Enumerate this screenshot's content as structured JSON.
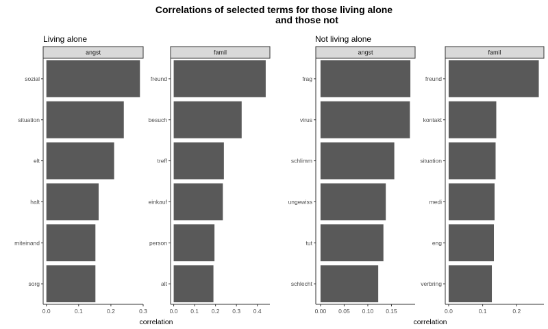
{
  "title_lines": [
    "Correlations of selected terms for those living alone",
    "and those not"
  ],
  "chart_data": [
    {
      "type": "bar",
      "orientation": "horizontal",
      "group": "Living alone",
      "xlabel": "correlation",
      "panels": [
        {
          "strip": "angst",
          "categories": [
            "sozial",
            "situation",
            "elt",
            "halt",
            "miteinand",
            "sorg"
          ],
          "values": [
            0.29,
            0.24,
            0.21,
            0.162,
            0.152,
            0.152
          ],
          "xlim": [
            -0.01,
            0.3
          ],
          "xticks": [
            0.0,
            0.1,
            0.2,
            0.3
          ],
          "xtick_labels": [
            "0.0",
            "0.1",
            "0.2",
            "0.3"
          ]
        },
        {
          "strip": "famil",
          "categories": [
            "freund",
            "besuch",
            "treff",
            "einkauf",
            "person",
            "alt"
          ],
          "values": [
            0.44,
            0.325,
            0.24,
            0.235,
            0.195,
            0.19
          ],
          "xlim": [
            -0.015,
            0.46
          ],
          "xticks": [
            0.0,
            0.1,
            0.2,
            0.3,
            0.4
          ],
          "xtick_labels": [
            "0.0",
            "0.1",
            "0.2",
            "0.3",
            "0.4"
          ]
        }
      ]
    },
    {
      "type": "bar",
      "orientation": "horizontal",
      "group": "Not living alone",
      "xlabel": "correlation",
      "panels": [
        {
          "strip": "angst",
          "categories": [
            "frag",
            "virus",
            "schlimm",
            "ungewiss",
            "tut",
            "schlecht"
          ],
          "values": [
            0.19,
            0.189,
            0.156,
            0.138,
            0.133,
            0.122
          ],
          "xlim": [
            -0.01,
            0.2
          ],
          "xticks": [
            0.0,
            0.05,
            0.1,
            0.15
          ],
          "xtick_labels": [
            "0.00",
            "0.05",
            "0.10",
            "0.15"
          ]
        },
        {
          "strip": "famil",
          "categories": [
            "freund",
            "kontakt",
            "situation",
            "medi",
            "eng",
            "verbring"
          ],
          "values": [
            0.265,
            0.14,
            0.138,
            0.135,
            0.133,
            0.127
          ],
          "xlim": [
            -0.01,
            0.28
          ],
          "xticks": [
            0.0,
            0.1,
            0.2
          ],
          "xtick_labels": [
            "0.0",
            "0.1",
            "0.2"
          ]
        }
      ]
    }
  ]
}
